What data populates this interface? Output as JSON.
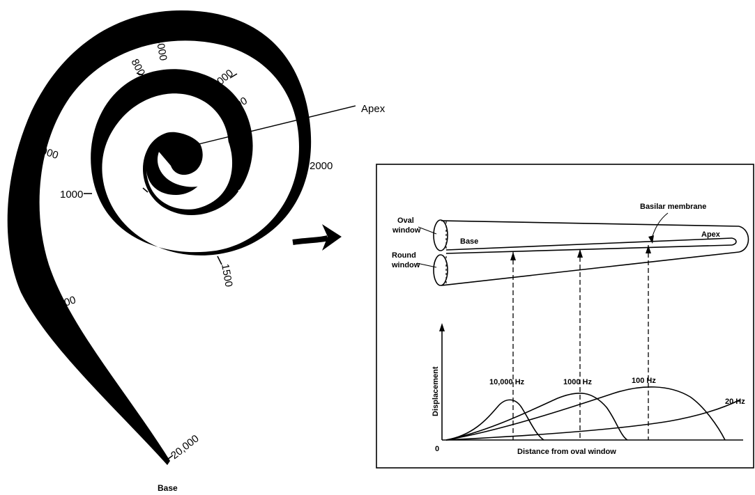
{
  "cochlea": {
    "apex_label": "Apex",
    "base_label": "Base",
    "frequency_marks": [
      "4000",
      "800",
      "3000",
      "600",
      "2000",
      "5000",
      "1000",
      "00",
      "400",
      "1500",
      "7000",
      "20,000"
    ]
  },
  "schematic": {
    "oval_window": [
      "Oval",
      "window"
    ],
    "round_window": [
      "Round",
      "window"
    ],
    "base_label": "Base",
    "apex_label": "Apex",
    "basilar_membrane_label": "Basilar membrane"
  },
  "displacement_graph": {
    "y_axis_label": "Displacement",
    "x_axis_label": "Distance from oval window",
    "origin_label": "0",
    "curve_labels": [
      "10,000 Hz",
      "1000 Hz",
      "100 Hz",
      "20 Hz"
    ]
  }
}
